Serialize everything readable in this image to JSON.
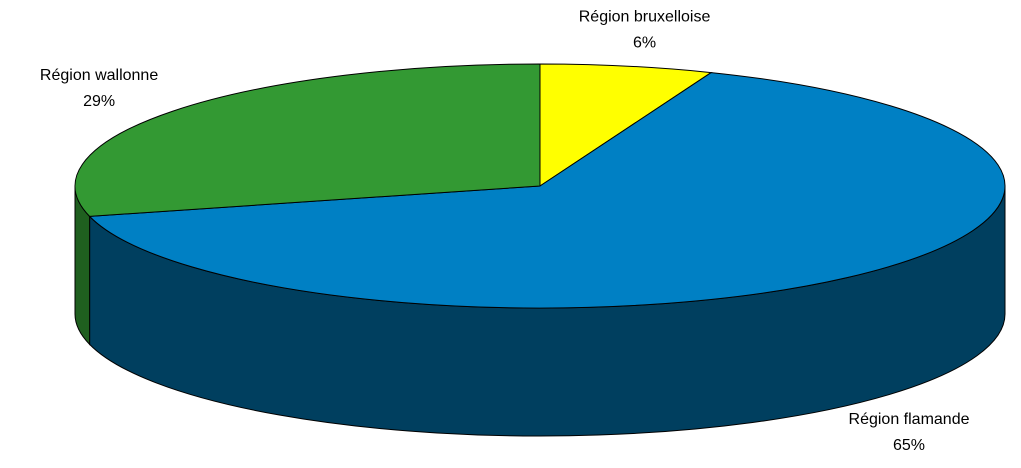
{
  "chart_data": {
    "type": "pie3d",
    "categories": [
      "Région bruxelloise",
      "Région flamande",
      "Région wallonne"
    ],
    "values": [
      6,
      65,
      29
    ],
    "value_labels": [
      "6%",
      "65%",
      "29%"
    ],
    "colors": [
      "#ffff00",
      "#0080c4",
      "#339933"
    ],
    "side_colors": [
      "#999900",
      "#003f5f",
      "#1f5f1f"
    ]
  }
}
